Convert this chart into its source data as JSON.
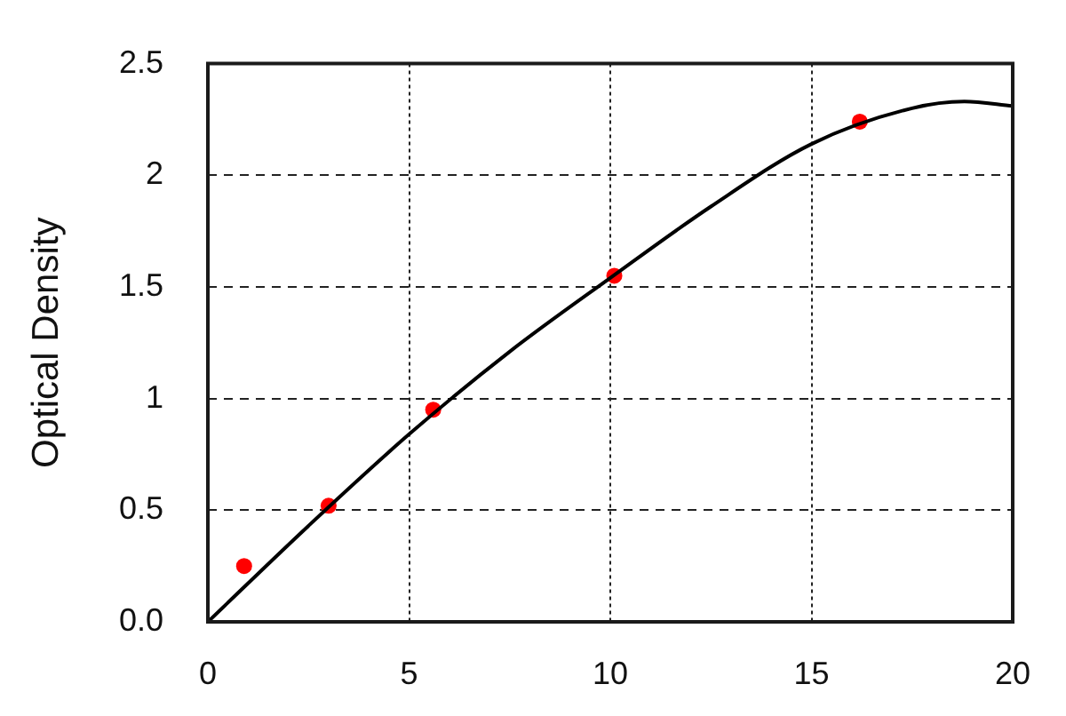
{
  "chart_data": {
    "type": "scatter",
    "ylabel": "Optical Density",
    "xlim": [
      0,
      20
    ],
    "ylim": [
      0,
      2.5
    ],
    "xticks": [
      0,
      5,
      10,
      15,
      20
    ],
    "yticks": [
      {
        "value": 0,
        "label": "0.0"
      },
      0.5,
      1,
      1.5,
      2,
      2.5
    ],
    "grid": true,
    "legend": false,
    "series": [
      {
        "type": "line",
        "color": "#000000",
        "marker": "none",
        "line_style": "solid",
        "x": [
          0,
          2.5,
          5,
          7.5,
          10,
          12.5,
          15,
          17.5,
          18.8,
          20
        ],
        "values": [
          0,
          0.43,
          0.84,
          1.21,
          1.54,
          1.86,
          2.14,
          2.3,
          2.33,
          2.31
        ]
      },
      {
        "type": "scatter",
        "color": "#ff0000",
        "marker": "circle",
        "x": [
          0.9,
          3.0,
          5.6,
          10.1,
          16.2
        ],
        "values": [
          0.25,
          0.52,
          0.95,
          1.55,
          2.24
        ]
      }
    ]
  }
}
